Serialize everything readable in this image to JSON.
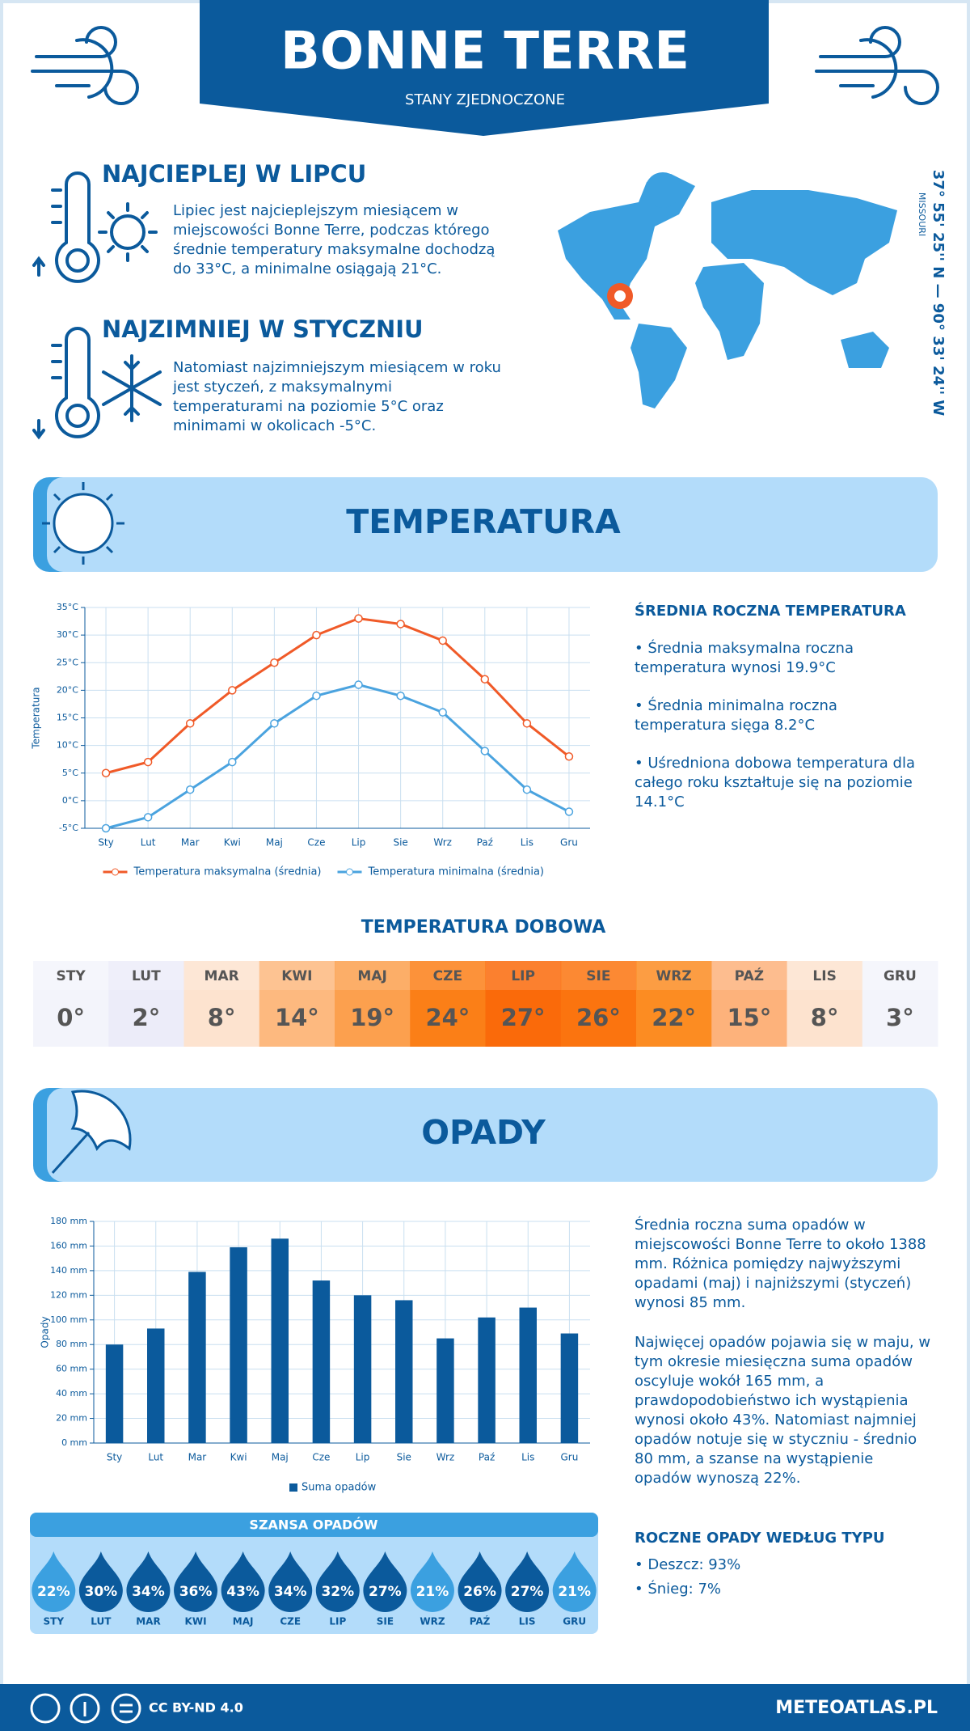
{
  "header": {
    "title": "BONNE TERRE",
    "subtitle": "STANY ZJEDNOCZONE"
  },
  "warmest": {
    "title": "NAJCIEPLEJ W LIPCU",
    "text": "Lipiec jest najcieplejszym miesiącem w miejscowości Bonne Terre, podczas którego średnie temperatury maksymalne dochodzą do 33°C, a minimalne osiągają 21°C."
  },
  "coldest": {
    "title": "NAJZIMNIEJ W STYCZNIU",
    "text": "Natomiast najzimniejszym miesiącem w roku jest styczeń, z maksymalnymi temperaturami na poziomie 5°C oraz minimami w okolicach -5°C."
  },
  "location": {
    "coordinates": "37° 55' 25'' N — 90° 33' 24'' W",
    "region": "MISSOURI"
  },
  "temperature_section": {
    "title": "TEMPERATURA",
    "summary_title": "ŚREDNIA ROCZNA TEMPERATURA",
    "bullets": [
      "• Średnia maksymalna roczna temperatura wynosi 19.9°C",
      "• Średnia minimalna roczna temperatura sięga 8.2°C",
      "• Uśredniona dobowa temperatura dla całego roku kształtuje się na poziomie 14.1°C"
    ]
  },
  "daily_temperature": {
    "title": "TEMPERATURA DOBOWA",
    "months": [
      "STY",
      "LUT",
      "MAR",
      "KWI",
      "MAJ",
      "CZE",
      "LIP",
      "SIE",
      "WRZ",
      "PAŹ",
      "LIS",
      "GRU"
    ],
    "values": [
      "0°",
      "2°",
      "8°",
      "14°",
      "19°",
      "24°",
      "27°",
      "26°",
      "22°",
      "15°",
      "8°",
      "3°"
    ],
    "colors": [
      "#f3f4fb",
      "#ececf9",
      "#fde3cf",
      "#fdb97f",
      "#fca04e",
      "#fb7f17",
      "#fa6a0a",
      "#fb740f",
      "#fc8c22",
      "#fdb27b",
      "#fde3cf",
      "#f3f4fb"
    ]
  },
  "precipitation_section": {
    "title": "OPADY",
    "paragraphs": [
      "Średnia roczna suma opadów w miejscowości Bonne Terre to około 1388 mm. Różnica pomiędzy najwyższymi opadami (maj) i najniższymi (styczeń) wynosi 85 mm.",
      "Najwięcej opadów pojawia się w maju, w tym okresie miesięczna suma opadów oscyluje wokół 165 mm, a prawdopodobieństwo ich wystąpienia wynosi około 43%. Natomiast najmniej opadów notuje się w styczniu - średnio 80 mm, a szanse na wystąpienie opadów wynoszą 22%."
    ],
    "chance": {
      "title": "SZANSA OPADÓW",
      "months": [
        "STY",
        "LUT",
        "MAR",
        "KWI",
        "MAJ",
        "CZE",
        "LIP",
        "SIE",
        "WRZ",
        "PAŹ",
        "LIS",
        "GRU"
      ],
      "values": [
        "22%",
        "30%",
        "34%",
        "36%",
        "43%",
        "34%",
        "32%",
        "27%",
        "21%",
        "26%",
        "27%",
        "21%"
      ],
      "colors": [
        "#3ba0e0",
        "#0b5a9c",
        "#0b5a9c",
        "#0b5a9c",
        "#0b5a9c",
        "#0b5a9c",
        "#0b5a9c",
        "#0b5a9c",
        "#3ba0e0",
        "#0b5a9c",
        "#0b5a9c",
        "#3ba0e0"
      ]
    },
    "type_title": "ROCZNE OPADY WEDŁUG TYPU",
    "types": [
      "• Deszcz: 93%",
      "• Śnieg: 7%"
    ]
  },
  "footer": {
    "license": "CC BY-ND 4.0",
    "site": "METEOATLAS.PL"
  },
  "chart_data": [
    {
      "type": "line",
      "y_label": "Temperatura",
      "categories": [
        "Sty",
        "Lut",
        "Mar",
        "Kwi",
        "Maj",
        "Cze",
        "Lip",
        "Sie",
        "Wrz",
        "Paź",
        "Lis",
        "Gru"
      ],
      "series": [
        {
          "name": "Temperatura maksymalna (średnia)",
          "color": "#f05a28",
          "values": [
            5,
            7,
            14,
            20,
            25,
            30,
            33,
            32,
            29,
            22,
            14,
            8
          ]
        },
        {
          "name": "Temperatura minimalna (średnia)",
          "color": "#4aa3df",
          "values": [
            -5,
            -3,
            2,
            7,
            14,
            19,
            21,
            19,
            16,
            9,
            2,
            -2
          ]
        }
      ],
      "ylim": [
        -5,
        35
      ],
      "yticks": [
        {
          "value": -5,
          "label": "-5°C"
        },
        {
          "value": 0,
          "label": "0°C"
        },
        {
          "value": 5,
          "label": "5°C"
        },
        {
          "value": 10,
          "label": "10°C"
        },
        {
          "value": 15,
          "label": "15°C"
        },
        {
          "value": 20,
          "label": "20°C"
        },
        {
          "value": 25,
          "label": "25°C"
        },
        {
          "value": 30,
          "label": "30°C"
        },
        {
          "value": 35,
          "label": "35°C"
        }
      ],
      "grid": true
    },
    {
      "type": "bar",
      "y_label": "Opady",
      "categories": [
        "Sty",
        "Lut",
        "Mar",
        "Kwi",
        "Maj",
        "Cze",
        "Lip",
        "Sie",
        "Wrz",
        "Paź",
        "Lis",
        "Gru"
      ],
      "series": [
        {
          "name": "Suma opadów",
          "color": "#0b5a9c",
          "values": [
            80,
            93,
            139,
            159,
            166,
            132,
            120,
            116,
            85,
            102,
            110,
            89
          ]
        }
      ],
      "ylim": [
        0,
        180
      ],
      "yticks": [
        {
          "value": 0,
          "label": "0 mm"
        },
        {
          "value": 20,
          "label": "20 mm"
        },
        {
          "value": 40,
          "label": "40 mm"
        },
        {
          "value": 60,
          "label": "60 mm"
        },
        {
          "value": 80,
          "label": "80 mm"
        },
        {
          "value": 100,
          "label": "100 mm"
        },
        {
          "value": 120,
          "label": "120 mm"
        },
        {
          "value": 140,
          "label": "140 mm"
        },
        {
          "value": 160,
          "label": "160 mm"
        },
        {
          "value": 180,
          "label": "180 mm"
        }
      ],
      "grid": true
    }
  ]
}
